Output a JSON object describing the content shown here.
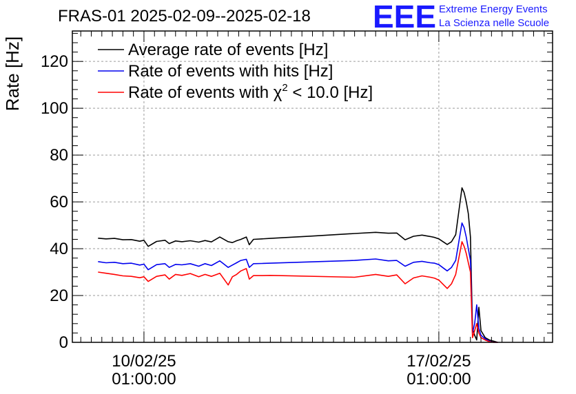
{
  "header": {
    "title": "FRAS-01 2025-02-09--2025-02-18",
    "logo_mark": "EEE",
    "logo_line1": "Extreme Energy Events",
    "logo_line2": "La Scienza nelle Scuole"
  },
  "colors": {
    "average": "#000000",
    "hits": "#0000ee",
    "chi2": "#ff0000",
    "logo": "#1a1aff"
  },
  "chart_data": {
    "type": "line",
    "title": "FRAS-01 2025-02-09--2025-02-18",
    "xlabel": "",
    "ylabel": "Rate [Hz]",
    "ylim": [
      0,
      133
    ],
    "y_ticks": [
      0,
      20,
      40,
      60,
      80,
      100,
      120
    ],
    "xlim_days": [
      -1.7,
      9.7
    ],
    "x_unit": "days since 2025-02-10 01:00:00",
    "x_ticks": [
      {
        "day": 0,
        "date": "10/02/25",
        "time": "01:00:00"
      },
      {
        "day": 7,
        "date": "17/02/25",
        "time": "01:00:00"
      }
    ],
    "grid": true,
    "legend_position": "top-left",
    "legend": [
      {
        "label": "Average rate of events [Hz]",
        "series": "average"
      },
      {
        "label": "Rate of events with hits [Hz]",
        "series": "hits"
      },
      {
        "label_pre": "Rate of events with ",
        "label_chi": "χ",
        "label_sup": "2",
        "label_post": " < 10.0 [Hz]",
        "series": "chi2"
      }
    ],
    "series": [
      {
        "name": "Average rate of events [Hz]",
        "key": "average",
        "x": [
          -1.09,
          -0.9,
          -0.7,
          -0.5,
          -0.3,
          -0.1,
          0.0,
          0.1,
          0.3,
          0.5,
          0.6,
          0.75,
          0.9,
          1.1,
          1.3,
          1.45,
          1.6,
          1.8,
          2.0,
          2.1,
          2.2,
          2.3,
          2.43,
          2.5,
          2.6,
          2.8,
          3.0,
          4.0,
          5.0,
          5.5,
          5.8,
          6.0,
          6.2,
          6.4,
          6.6,
          6.8,
          6.9,
          7.0,
          7.2,
          7.3,
          7.4,
          7.55,
          7.6,
          7.65,
          7.7,
          7.75,
          7.8,
          7.85,
          7.9,
          7.95,
          8.0,
          8.1,
          8.2,
          8.3,
          8.4
        ],
        "y": [
          44.5,
          44.2,
          44.4,
          43.8,
          43.9,
          43.2,
          43.6,
          41.0,
          43.1,
          43.6,
          42.2,
          43.3,
          43.0,
          43.4,
          42.8,
          43.5,
          42.9,
          45.0,
          43.0,
          42.6,
          43.4,
          44.0,
          45.0,
          41.7,
          44.0,
          44.2,
          44.4,
          45.4,
          46.5,
          47.0,
          46.6,
          46.7,
          43.8,
          45.3,
          45.8,
          45.2,
          44.8,
          44.2,
          41.8,
          43.0,
          46.0,
          66.0,
          64.0,
          60.0,
          55.0,
          45.0,
          6.0,
          3.0,
          1.0,
          15.0,
          5.0,
          2.0,
          1.0,
          0.5,
          0.0
        ]
      },
      {
        "name": "Rate of events with hits [Hz]",
        "key": "hits",
        "x": [
          -1.09,
          -0.9,
          -0.7,
          -0.5,
          -0.3,
          -0.1,
          0.0,
          0.1,
          0.3,
          0.5,
          0.6,
          0.75,
          0.9,
          1.1,
          1.3,
          1.45,
          1.6,
          1.8,
          2.0,
          2.1,
          2.2,
          2.3,
          2.43,
          2.5,
          2.6,
          2.8,
          3.0,
          5.0,
          5.5,
          5.8,
          6.0,
          6.2,
          6.4,
          6.6,
          6.8,
          6.9,
          7.0,
          7.2,
          7.3,
          7.4,
          7.55,
          7.6,
          7.65,
          7.7,
          7.75,
          7.8,
          7.85,
          7.9,
          7.95,
          8.0,
          8.1,
          8.2,
          8.3,
          8.4
        ],
        "y": [
          34.5,
          34.0,
          34.2,
          33.6,
          33.8,
          33.0,
          33.4,
          31.0,
          33.2,
          33.6,
          32.0,
          33.3,
          33.1,
          33.6,
          32.5,
          33.6,
          32.8,
          34.8,
          32.0,
          33.0,
          34.0,
          35.0,
          35.5,
          32.0,
          33.6,
          33.7,
          33.8,
          35.0,
          35.6,
          34.8,
          35.0,
          32.5,
          34.2,
          34.6,
          34.0,
          33.8,
          33.2,
          30.5,
          32.0,
          35.0,
          51.0,
          49.0,
          45.0,
          40.0,
          35.0,
          4.0,
          8.0,
          16.0,
          6.0,
          3.0,
          1.5,
          0.5,
          0.0,
          0.0
        ]
      },
      {
        "name": "Rate of events with χ2 < 10.0 [Hz]",
        "key": "chi2",
        "x": [
          -1.09,
          -0.9,
          -0.7,
          -0.5,
          -0.3,
          -0.1,
          0.0,
          0.1,
          0.3,
          0.5,
          0.6,
          0.75,
          0.9,
          1.1,
          1.3,
          1.45,
          1.6,
          1.8,
          2.0,
          2.1,
          2.2,
          2.3,
          2.43,
          2.5,
          2.6,
          2.8,
          3.0,
          5.0,
          5.5,
          5.8,
          6.0,
          6.2,
          6.4,
          6.6,
          6.8,
          6.9,
          7.0,
          7.2,
          7.3,
          7.4,
          7.55,
          7.6,
          7.65,
          7.7,
          7.75,
          7.8,
          7.85,
          7.9,
          7.95,
          8.0,
          8.1,
          8.2,
          8.3,
          8.4
        ],
        "y": [
          30.0,
          29.5,
          29.0,
          28.4,
          28.2,
          27.6,
          28.0,
          26.0,
          28.2,
          28.8,
          27.0,
          29.0,
          28.6,
          29.4,
          28.0,
          29.0,
          28.2,
          29.5,
          24.5,
          28.0,
          29.0,
          30.5,
          31.5,
          27.0,
          28.5,
          28.5,
          28.6,
          27.8,
          29.0,
          28.2,
          28.8,
          25.0,
          27.5,
          28.4,
          27.8,
          27.4,
          26.6,
          23.0,
          25.0,
          29.0,
          43.0,
          41.0,
          38.0,
          34.0,
          30.0,
          2.0,
          5.0,
          8.0,
          4.0,
          2.0,
          1.0,
          0.3,
          0.0,
          0.0
        ]
      }
    ]
  }
}
